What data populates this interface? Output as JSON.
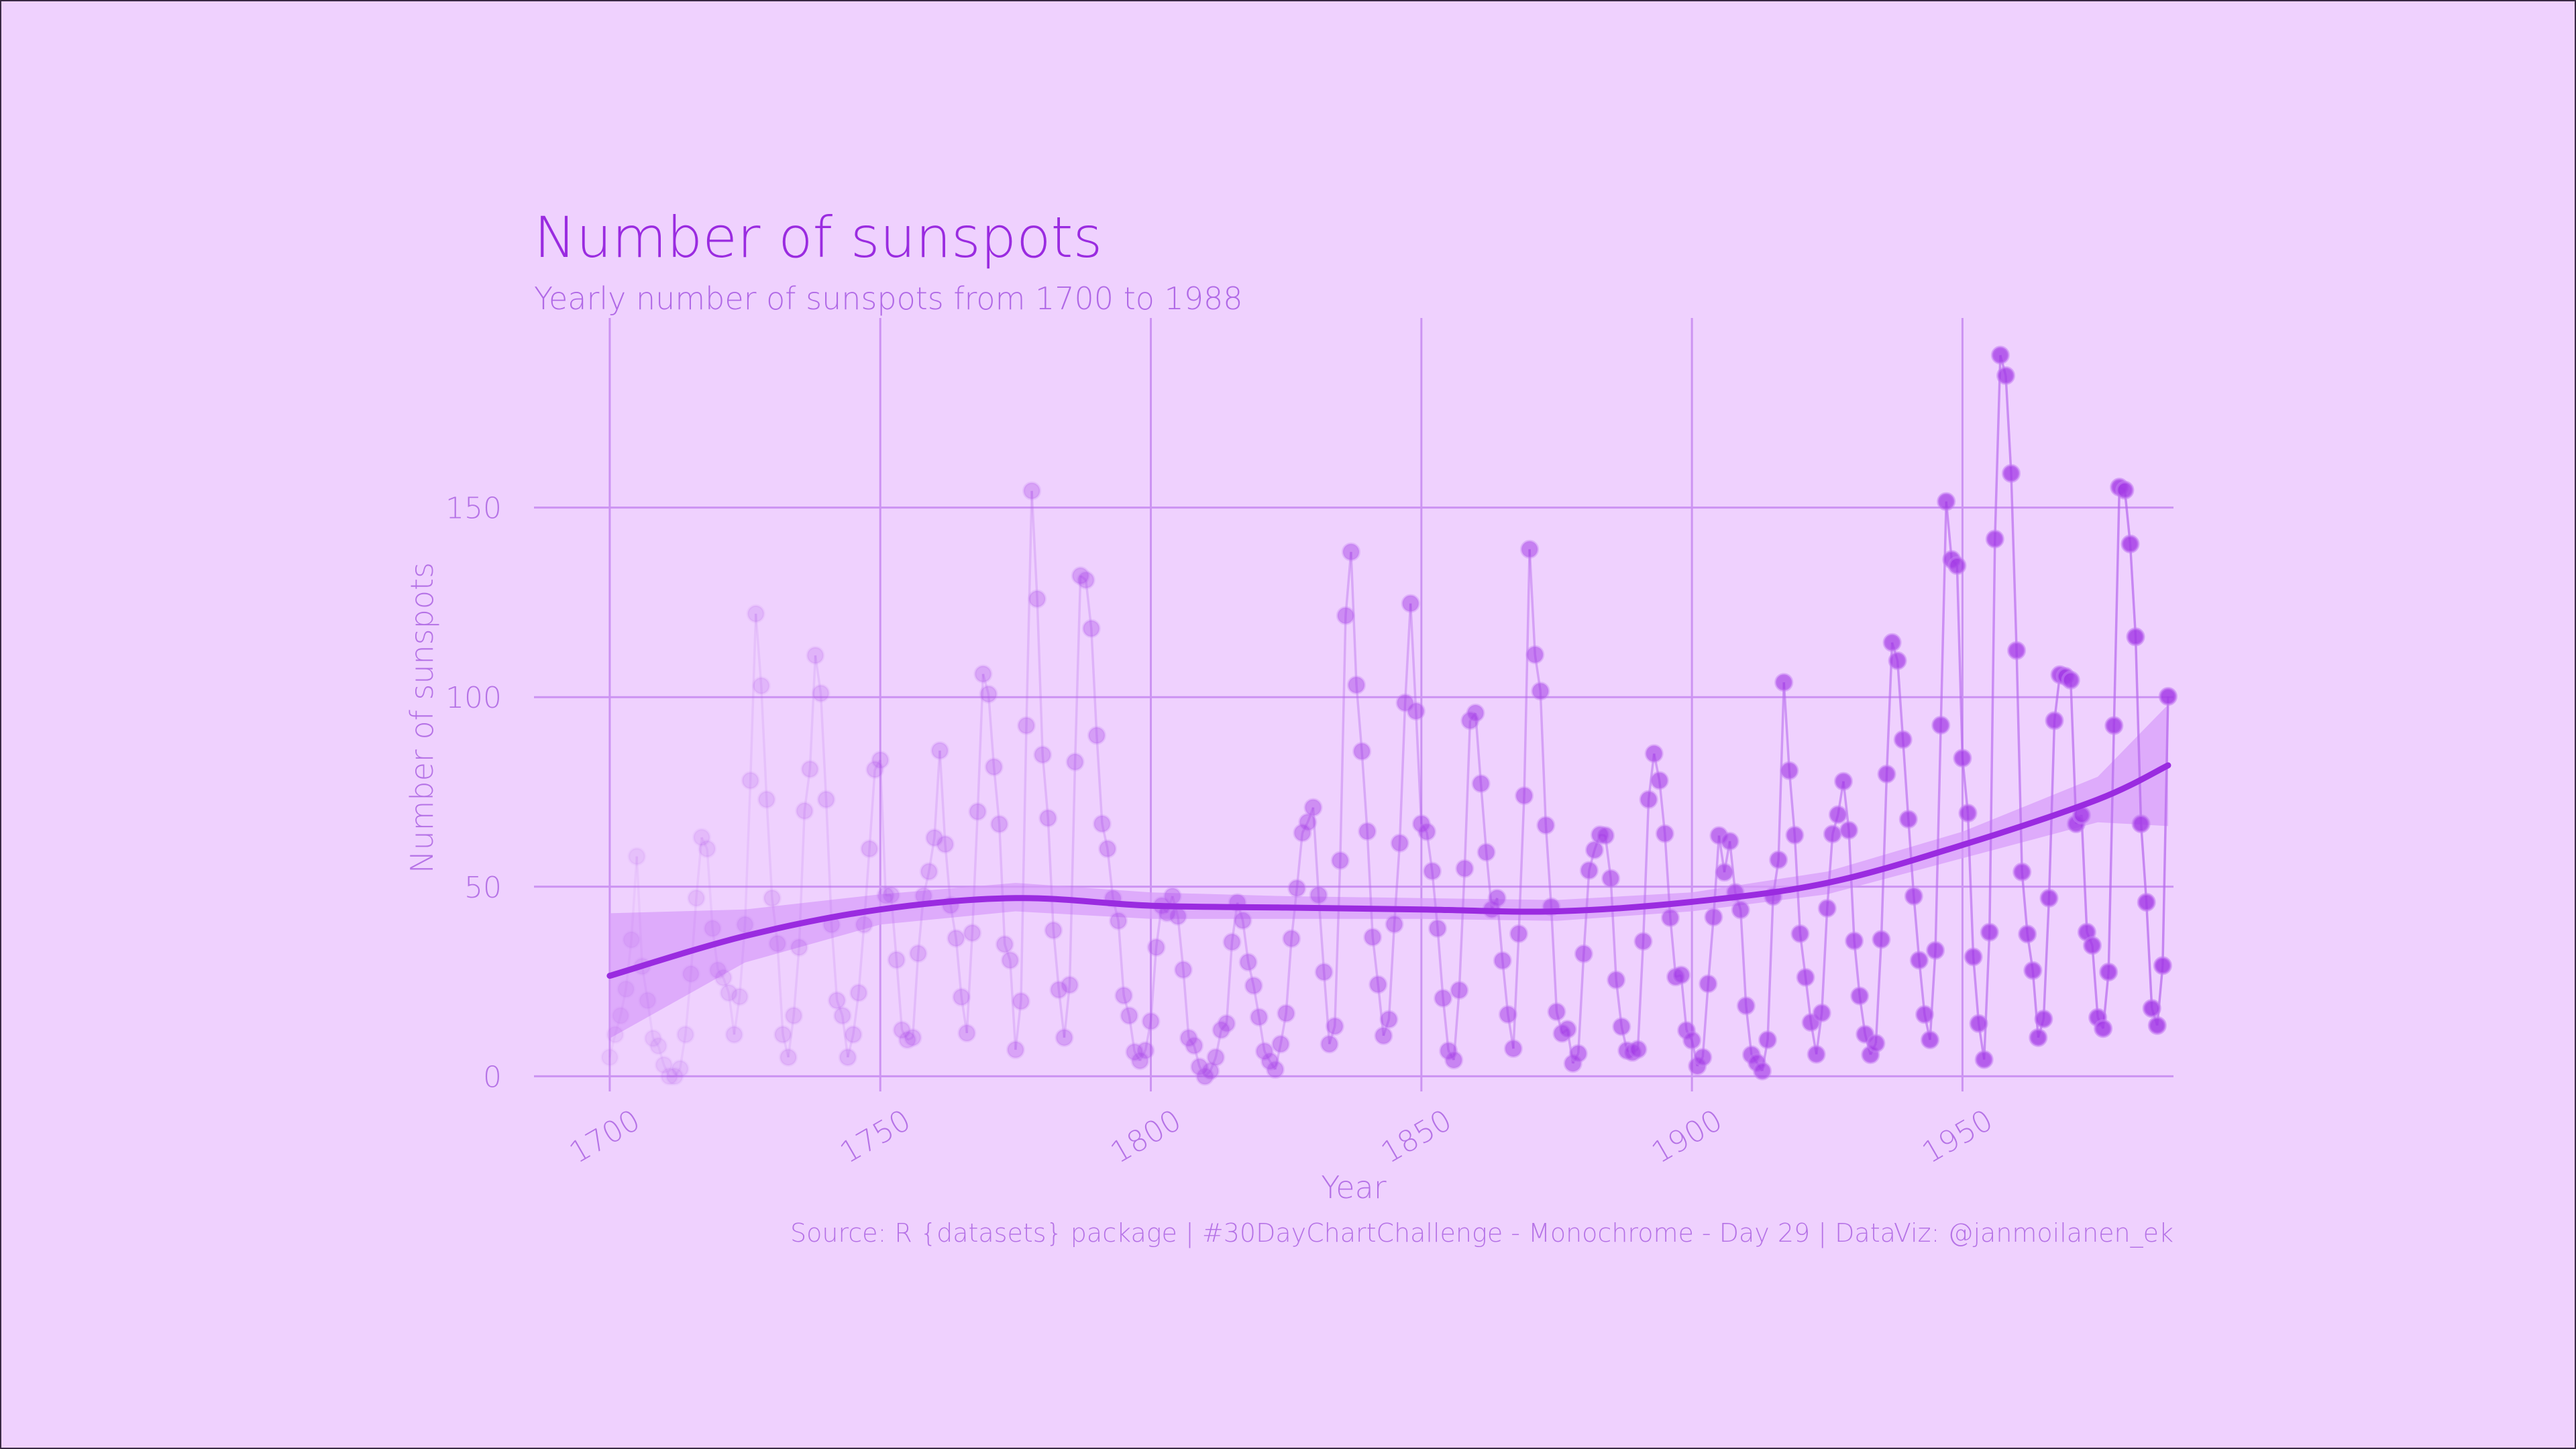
{
  "colors": {
    "background": "#efd1fe",
    "accent": "#9a2be0",
    "grid": "#cc93f2",
    "text": "#b572e6"
  },
  "chart_data": {
    "type": "line",
    "title": "Number of sunspots",
    "subtitle": "Yearly number of sunspots from 1700 to 1988",
    "xlabel": "Year",
    "ylabel": "Number of sunspots",
    "caption": "Source: R {datasets} package  |  #30DayChartChallenge - Monochrome - Day 29  |  DataViz: @janmoilanen_ek",
    "xlim": [
      1686,
      1989
    ],
    "ylim": [
      -4,
      200
    ],
    "x_ticks": [
      1700,
      1750,
      1800,
      1850,
      1900,
      1950
    ],
    "x_tick_labels": [
      "1700",
      "1750",
      "1800",
      "1850",
      "1900",
      "1950"
    ],
    "y_ticks": [
      0,
      50,
      100,
      150
    ],
    "y_tick_labels": [
      "0",
      "50",
      "100",
      "150"
    ],
    "grid": true,
    "x_start": 1700,
    "values": [
      5,
      11,
      16,
      23,
      36,
      58,
      29,
      20,
      10,
      8,
      3,
      0,
      0,
      2,
      11,
      27,
      47,
      63,
      60,
      39,
      28,
      26,
      22,
      11,
      21,
      40,
      78,
      122,
      103,
      73,
      47,
      35,
      11,
      5,
      16,
      34,
      70,
      81,
      111,
      101,
      73,
      40,
      20,
      16,
      5,
      11,
      22,
      40,
      60,
      80.9,
      83.4,
      47.7,
      47.8,
      30.7,
      12.2,
      9.6,
      10.2,
      32.4,
      47.6,
      54,
      62.9,
      85.9,
      61.2,
      45.1,
      36.4,
      20.9,
      11.4,
      37.8,
      69.8,
      106.1,
      100.8,
      81.6,
      66.5,
      34.8,
      30.6,
      7,
      19.8,
      92.5,
      154.4,
      125.9,
      84.8,
      68.1,
      38.5,
      22.8,
      10.2,
      24.1,
      82.9,
      132,
      130.9,
      118.1,
      89.9,
      66.6,
      60,
      46.9,
      41,
      21.3,
      16,
      6.4,
      4.1,
      6.8,
      14.5,
      34,
      45,
      43.1,
      47.5,
      42.2,
      28.1,
      10.1,
      8.1,
      2.5,
      0,
      1.4,
      5,
      12.2,
      13.9,
      35.4,
      45.8,
      41.1,
      30.1,
      23.9,
      15.6,
      6.6,
      4,
      1.8,
      8.5,
      16.6,
      36.3,
      49.6,
      64.2,
      67,
      70.9,
      47.8,
      27.5,
      8.5,
      13.2,
      56.9,
      121.5,
      138.3,
      103.2,
      85.7,
      64.6,
      36.7,
      24.2,
      10.7,
      15,
      40.1,
      61.5,
      98.5,
      124.7,
      96.3,
      66.6,
      64.5,
      54.1,
      39,
      20.6,
      6.7,
      4.3,
      22.7,
      54.8,
      93.8,
      95.8,
      77.2,
      59.1,
      44,
      47,
      30.5,
      16.3,
      7.3,
      37.6,
      74,
      139,
      111.2,
      101.6,
      66.2,
      44.7,
      17,
      11.3,
      12.4,
      3.4,
      6,
      32.3,
      54.3,
      59.7,
      63.7,
      63.5,
      52.2,
      25.4,
      13.1,
      6.8,
      6.3,
      7.1,
      35.6,
      73,
      85.1,
      78,
      64,
      41.8,
      26.2,
      26.7,
      12.1,
      9.5,
      2.7,
      5,
      24.4,
      42,
      63.5,
      53.8,
      62,
      48.5,
      43.9,
      18.6,
      5.7,
      3.6,
      1.4,
      9.6,
      47.4,
      57.1,
      103.9,
      80.6,
      63.6,
      37.6,
      26.1,
      14.2,
      5.8,
      16.7,
      44.3,
      63.9,
      69,
      77.8,
      64.9,
      35.7,
      21.2,
      11.1,
      5.7,
      8.7,
      36.1,
      79.7,
      114.4,
      109.6,
      88.8,
      67.8,
      47.5,
      30.6,
      16.3,
      9.6,
      33.2,
      92.6,
      151.6,
      136.3,
      134.7,
      83.9,
      69.4,
      31.5,
      13.9,
      4.4,
      38,
      141.7,
      190.2,
      184.8,
      159,
      112.3,
      53.9,
      37.5,
      27.9,
      10.2,
      15.1,
      47,
      93.8,
      105.9,
      105.5,
      104.5,
      66.6,
      68.9,
      38,
      34.5,
      15.5,
      12.6,
      27.5,
      92.5,
      155.4,
      154.6,
      140.4,
      115.9,
      66.6,
      45.9,
      17.9,
      13.4,
      29.2,
      100.2
    ],
    "trend": [
      {
        "x": 1700,
        "y": 26.5
      },
      {
        "x": 1725,
        "y": 37
      },
      {
        "x": 1750,
        "y": 44
      },
      {
        "x": 1775,
        "y": 47
      },
      {
        "x": 1800,
        "y": 45
      },
      {
        "x": 1825,
        "y": 44.5
      },
      {
        "x": 1850,
        "y": 44
      },
      {
        "x": 1875,
        "y": 43.5
      },
      {
        "x": 1900,
        "y": 46
      },
      {
        "x": 1925,
        "y": 51
      },
      {
        "x": 1950,
        "y": 61
      },
      {
        "x": 1975,
        "y": 73
      },
      {
        "x": 1988,
        "y": 82
      }
    ],
    "trend_band_lower": [
      10,
      30,
      40,
      43.5,
      41.5,
      41.5,
      41.5,
      41,
      43.5,
      48,
      57.5,
      67,
      66
    ],
    "trend_band_upper": [
      43,
      44,
      48,
      51,
      48.5,
      47.5,
      47,
      46.5,
      48.5,
      54,
      64.5,
      79,
      98
    ]
  }
}
